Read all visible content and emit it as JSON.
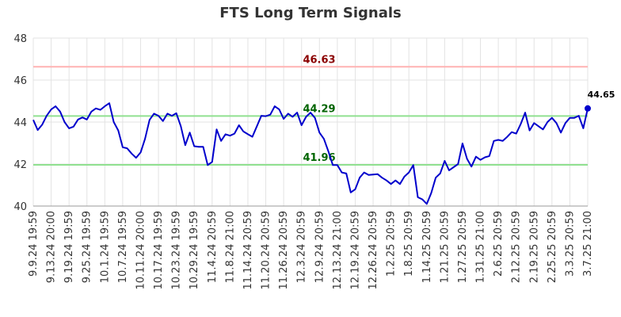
{
  "chart_data": {
    "type": "line",
    "title": "FTS Long Term Signals",
    "xlabel": "",
    "ylabel": "",
    "ylim": [
      40,
      48
    ],
    "yticks": [
      40,
      42,
      44,
      46,
      48
    ],
    "grid": true,
    "x_tick_labels": [
      "9.9.24 19:59",
      "9.13.24 20:00",
      "9.19.24 19:59",
      "9.25.24 19:59",
      "10.1.24 19:59",
      "10.7.24 19:59",
      "10.11.24 20:00",
      "10.17.24 19:59",
      "10.23.24 19:59",
      "10.29.24 19:59",
      "11.4.24 20:59",
      "11.8.24 21:00",
      "11.14.24 20:59",
      "11.20.24 20:59",
      "11.26.24 20:59",
      "12.3.24 20:59",
      "12.9.24 20:59",
      "12.13.24 21:00",
      "12.19.24 20:59",
      "12.26.24 20:59",
      "1.2.25 20:59",
      "1.8.25 20:59",
      "1.14.25 20:59",
      "1.21.25 20:59",
      "1.27.25 20:59",
      "1.31.25 21:00",
      "2.6.25 20:59",
      "2.12.25 20:59",
      "2.19.25 20:59",
      "2.25.25 20:59",
      "3.3.25 20:59",
      "3.7.25 21:00"
    ],
    "series": [
      {
        "color": "#0000cc",
        "values": [
          44.1,
          43.62,
          43.88,
          44.3,
          44.6,
          44.75,
          44.5,
          44.0,
          43.7,
          43.78,
          44.12,
          44.22,
          44.12,
          44.5,
          44.65,
          44.58,
          44.75,
          44.9,
          44.0,
          43.6,
          42.8,
          42.75,
          42.5,
          42.3,
          42.55,
          43.2,
          44.1,
          44.4,
          44.3,
          44.05,
          44.4,
          44.3,
          44.42,
          43.8,
          42.9,
          43.5,
          42.85,
          42.82,
          42.82,
          41.95,
          42.1,
          43.65,
          43.1,
          43.42,
          43.35,
          43.45,
          43.85,
          43.55,
          43.42,
          43.3,
          43.8,
          44.3,
          44.28,
          44.35,
          44.75,
          44.6,
          44.15,
          44.4,
          44.25,
          44.45,
          43.85,
          44.25,
          44.45,
          44.2,
          43.5,
          43.2,
          42.6,
          41.95,
          41.95,
          41.6,
          41.55,
          40.65,
          40.8,
          41.35,
          41.6,
          41.48,
          41.5,
          41.52,
          41.35,
          41.22,
          41.05,
          41.22,
          41.05,
          41.4,
          41.6,
          41.95,
          40.42,
          40.32,
          40.1,
          40.62,
          41.35,
          41.55,
          42.15,
          41.7,
          41.85,
          42.0,
          42.98,
          42.25,
          41.88,
          42.35,
          42.2,
          42.32,
          42.38,
          43.1,
          43.15,
          43.1,
          43.3,
          43.52,
          43.45,
          43.9,
          44.45,
          43.6,
          43.95,
          43.8,
          43.65,
          44.0,
          44.2,
          43.95,
          43.5,
          43.95,
          44.2,
          44.2,
          44.3,
          43.7,
          44.65
        ]
      }
    ],
    "levels": [
      {
        "value": 46.63,
        "label": "46.63",
        "line_color": "#ffb3b3",
        "text_color": "#8b0000"
      },
      {
        "value": 44.29,
        "label": "44.29",
        "line_color": "#90e090",
        "text_color": "#006400"
      },
      {
        "value": 41.96,
        "label": "41.96",
        "line_color": "#90e090",
        "text_color": "#006400"
      }
    ],
    "last_value_label": "44.65",
    "last_point_color": "#0000cc"
  }
}
